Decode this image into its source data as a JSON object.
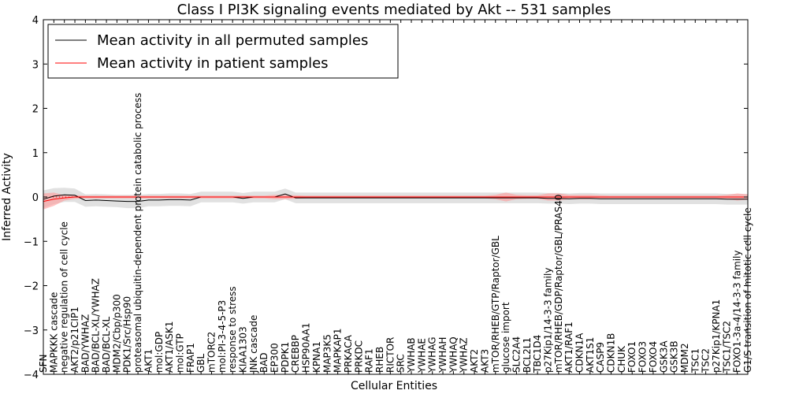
{
  "chart_data": {
    "type": "line",
    "title": "Class I PI3K signaling events mediated by Akt -- 531 samples",
    "xlabel": "Cellular Entities",
    "ylabel": "Inferred Activity",
    "ylim": [
      -4,
      4
    ],
    "yticks": [
      -4,
      -3,
      -2,
      -1,
      0,
      1,
      2,
      3,
      4
    ],
    "grid": false,
    "legend_position": "top-left",
    "categories": [
      "SFN",
      "MAPKKK cascade",
      "negative regulation of cell cycle",
      "AKT2/p21CIP1",
      "BAD/YWHAZ",
      "BAD/BCL-XL/YWHAZ",
      "BAD/BCL-XL",
      "MDM2/Cbp/p300",
      "PDK1/Src/Hsp90",
      "proteasomal ubiquitin-dependent protein catabolic process",
      "AKT1",
      "mol:GDP",
      "AKT1/ASK1",
      "mol:GTP",
      "FRAP1",
      "GBL",
      "mTORC2",
      "mol:PI-3-4-5-P3",
      "response to stress",
      "KIAA1303",
      "JNK cascade",
      "BAD",
      "EP300",
      "PDPK1",
      "CREBBP",
      "HSP90AA1",
      "KPNA1",
      "MAP3K5",
      "MAPKAP1",
      "PRKACA",
      "PRKDC",
      "RAF1",
      "RHEB",
      "RICTOR",
      "SRC",
      "YWHAB",
      "YWHAE",
      "YWHAG",
      "YWHAH",
      "YWHAQ",
      "YWHAZ",
      "AKT2",
      "AKT3",
      "mTOR/RHEB/GTP/Raptor/GBL",
      "glucose import",
      "SLC2A4",
      "BCL2L1",
      "TBC1D4",
      "p27Kip1/14-3-3 family",
      "mTOR/RHEB/GDP/Raptor/GBL/PRAS40",
      "AKT1/RAF1",
      "CDKN1A",
      "AKT1S1",
      "CASP9",
      "CDKN1B",
      "CHUK",
      "FOXO1",
      "FOXO3",
      "FOXO4",
      "GSK3A",
      "GSK3B",
      "MDM2",
      "TSC1",
      "TSC2",
      "p27Kip1/KPNA1",
      "TSC1/TSC2",
      "FOXO1-3a-4/14-3-3 family",
      "G1/S transition of mitotic cell cycle"
    ],
    "series": [
      {
        "name": "Mean activity in all permuted samples",
        "color": "#000000",
        "band_color": "#c8c8c8",
        "values": [
          -0.05,
          0.02,
          0.05,
          0.04,
          -0.08,
          -0.07,
          -0.08,
          -0.09,
          -0.1,
          -0.1,
          -0.07,
          -0.07,
          -0.06,
          -0.06,
          -0.07,
          0.0,
          0.0,
          0.0,
          0.0,
          -0.03,
          0.0,
          0.0,
          0.0,
          0.07,
          -0.02,
          -0.02,
          -0.02,
          -0.02,
          -0.02,
          -0.02,
          -0.02,
          -0.02,
          -0.02,
          -0.02,
          -0.02,
          -0.02,
          -0.02,
          -0.02,
          -0.02,
          -0.02,
          -0.02,
          -0.02,
          -0.02,
          -0.02,
          -0.02,
          -0.02,
          -0.02,
          -0.02,
          -0.03,
          -0.03,
          -0.04,
          -0.03,
          -0.03,
          -0.04,
          -0.04,
          -0.04,
          -0.04,
          -0.04,
          -0.04,
          -0.04,
          -0.04,
          -0.04,
          -0.04,
          -0.04,
          -0.04,
          -0.05,
          -0.05,
          -0.05
        ],
        "band": [
          0.2,
          0.18,
          0.16,
          0.15,
          0.14,
          0.14,
          0.14,
          0.14,
          0.15,
          0.15,
          0.14,
          0.14,
          0.14,
          0.14,
          0.14,
          0.12,
          0.12,
          0.12,
          0.12,
          0.12,
          0.12,
          0.12,
          0.12,
          0.12,
          0.12,
          0.12,
          0.12,
          0.12,
          0.12,
          0.12,
          0.12,
          0.12,
          0.12,
          0.12,
          0.12,
          0.12,
          0.12,
          0.12,
          0.12,
          0.12,
          0.12,
          0.12,
          0.12,
          0.12,
          0.12,
          0.12,
          0.12,
          0.12,
          0.12,
          0.12,
          0.12,
          0.12,
          0.12,
          0.12,
          0.12,
          0.12,
          0.12,
          0.12,
          0.12,
          0.12,
          0.12,
          0.12,
          0.12,
          0.12,
          0.12,
          0.12,
          0.12,
          0.12
        ]
      },
      {
        "name": "Mean activity in patient samples",
        "color": "#ff0000",
        "band_color": "#ff9a9a",
        "values": [
          -0.1,
          -0.05,
          -0.02,
          0.0,
          0.0,
          0.0,
          0.0,
          0.0,
          0.0,
          0.0,
          0.0,
          0.0,
          0.0,
          0.0,
          0.0,
          0.0,
          0.0,
          0.0,
          0.0,
          0.0,
          0.0,
          0.0,
          0.0,
          0.0,
          0.0,
          0.0,
          0.0,
          0.0,
          0.0,
          0.0,
          0.0,
          0.0,
          0.0,
          0.0,
          0.0,
          0.0,
          0.0,
          0.0,
          0.0,
          0.0,
          0.0,
          0.0,
          0.0,
          0.0,
          0.0,
          0.0,
          0.0,
          0.0,
          0.0,
          0.0,
          0.0,
          0.0,
          0.0,
          0.0,
          0.0,
          0.0,
          0.0,
          0.0,
          0.0,
          0.0,
          0.0,
          0.0,
          0.0,
          0.0,
          0.0,
          0.0,
          0.0,
          0.0
        ],
        "band": [
          0.18,
          0.15,
          0.06,
          0.04,
          0.03,
          0.03,
          0.03,
          0.03,
          0.03,
          0.03,
          0.03,
          0.03,
          0.03,
          0.03,
          0.03,
          0.03,
          0.03,
          0.03,
          0.03,
          0.03,
          0.03,
          0.03,
          0.05,
          0.05,
          0.04,
          0.03,
          0.03,
          0.03,
          0.03,
          0.03,
          0.03,
          0.03,
          0.03,
          0.03,
          0.03,
          0.03,
          0.03,
          0.03,
          0.03,
          0.03,
          0.03,
          0.03,
          0.03,
          0.05,
          0.1,
          0.05,
          0.04,
          0.04,
          0.08,
          0.08,
          0.05,
          0.05,
          0.05,
          0.04,
          0.03,
          0.03,
          0.03,
          0.03,
          0.03,
          0.03,
          0.03,
          0.03,
          0.03,
          0.03,
          0.03,
          0.05,
          0.08,
          0.06
        ]
      }
    ]
  }
}
